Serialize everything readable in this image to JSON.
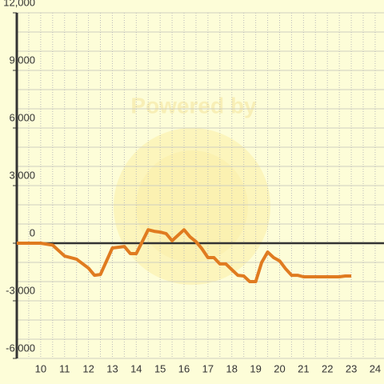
{
  "chart_data": {
    "type": "line",
    "watermark": "Powered by",
    "x": [
      9,
      9.5,
      10,
      10.5,
      11,
      11.5,
      12,
      12.25,
      12.5,
      13,
      13.5,
      13.75,
      14,
      14.5,
      14.75,
      15,
      15.25,
      15.5,
      16,
      16.25,
      16.5,
      16.75,
      17,
      17.25,
      17.5,
      17.75,
      18,
      18.25,
      18.5,
      18.75,
      19,
      19.25,
      19.5,
      19.75,
      20,
      20.25,
      20.5,
      20.75,
      21,
      21.5,
      22,
      22.5,
      22.75,
      23
    ],
    "series": [
      {
        "color": "#e07b20",
        "values": [
          0,
          0,
          0,
          -100,
          -670,
          -830,
          -1300,
          -1670,
          -1630,
          -250,
          -170,
          -540,
          -540,
          700,
          620,
          580,
          500,
          130,
          700,
          330,
          80,
          -290,
          -750,
          -750,
          -1080,
          -1080,
          -1380,
          -1670,
          -1710,
          -2000,
          -2000,
          -1000,
          -460,
          -750,
          -920,
          -1330,
          -1670,
          -1670,
          -1750,
          -1750,
          -1750,
          -1750,
          -1710,
          -1710
        ]
      }
    ],
    "xlim": [
      9,
      24.37
    ],
    "xticks": [
      10,
      11,
      12,
      13,
      14,
      15,
      16,
      17,
      18,
      19,
      20,
      21,
      22,
      23,
      24
    ],
    "ylim": [
      -6000,
      12000
    ],
    "yticks": [
      {
        "value": -6000,
        "label": "-6,000"
      },
      {
        "value": -3000,
        "label": "-3,000"
      },
      0,
      {
        "value": 3000,
        "label": "3,000"
      },
      {
        "value": 6000,
        "label": "6,000"
      },
      {
        "value": 9000,
        "label": "9,000"
      },
      {
        "value": 12000,
        "label": "12,000"
      }
    ],
    "grid": true
  }
}
